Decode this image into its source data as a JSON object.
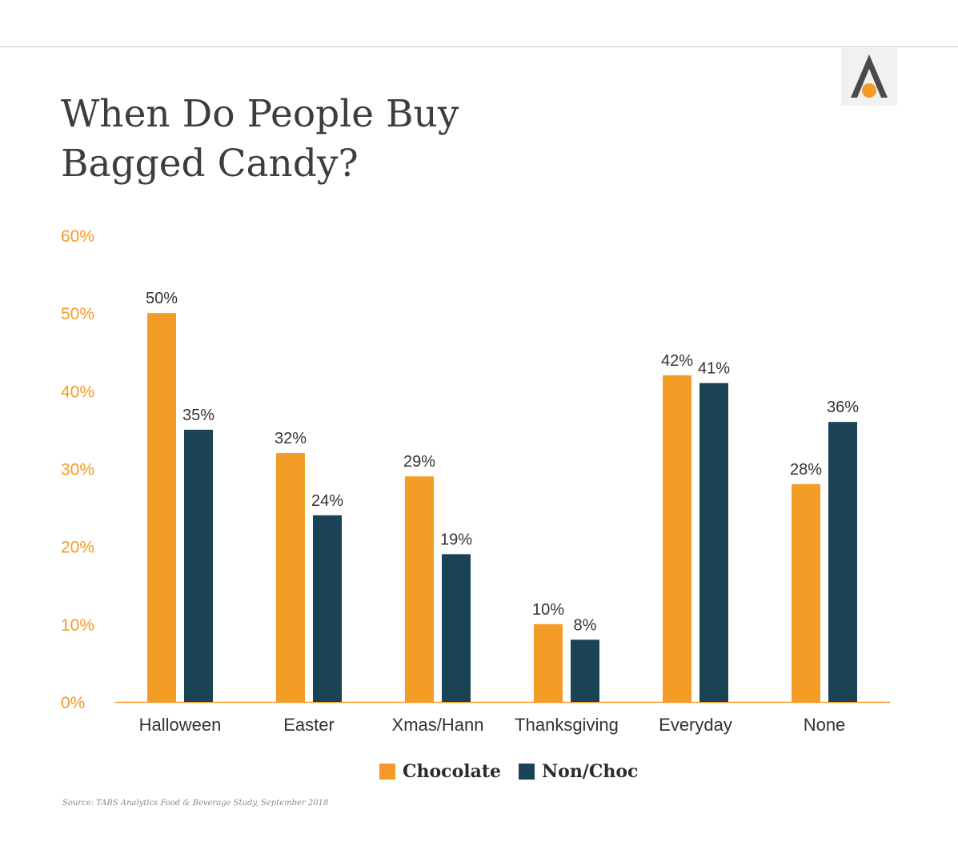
{
  "header": {
    "title_line1": "When Do People Buy",
    "title_line2": "Bagged Candy?"
  },
  "logo": {
    "icon": "letter-a-logo-icon",
    "accent_color": "#f39c26",
    "dark_color": "#4a4a4a"
  },
  "colors": {
    "chocolate": "#f39c26",
    "non_choc": "#1b4356",
    "axis_tick": "#f39c26",
    "baseline": "#f39c26"
  },
  "chart_data": {
    "type": "bar",
    "title": "When Do People Buy Bagged Candy?",
    "categories": [
      "Halloween",
      "Easter",
      "Xmas/Hann",
      "Thanksgiving",
      "Everyday",
      "None"
    ],
    "series": [
      {
        "name": "Chocolate",
        "values": [
          50,
          32,
          29,
          10,
          42,
          28
        ],
        "labels": [
          "50%",
          "32%",
          "29%",
          "10%",
          "42%",
          "28%"
        ]
      },
      {
        "name": "Non/Choc",
        "values": [
          35,
          24,
          19,
          8,
          41,
          36
        ],
        "labels": [
          "35%",
          "24%",
          "19%",
          "8%",
          "41%",
          "36%"
        ]
      }
    ],
    "ylim": [
      0,
      60
    ],
    "yticks": [
      "0%",
      "10%",
      "20%",
      "30%",
      "40%",
      "50%",
      "60%"
    ],
    "grid": false,
    "legend": "bottom-center"
  },
  "legend": {
    "chocolate_label": "Chocolate",
    "non_choc_label": "Non/Choc"
  },
  "source": "Source: TABS Analytics Food & Beverage Study, September 2018"
}
